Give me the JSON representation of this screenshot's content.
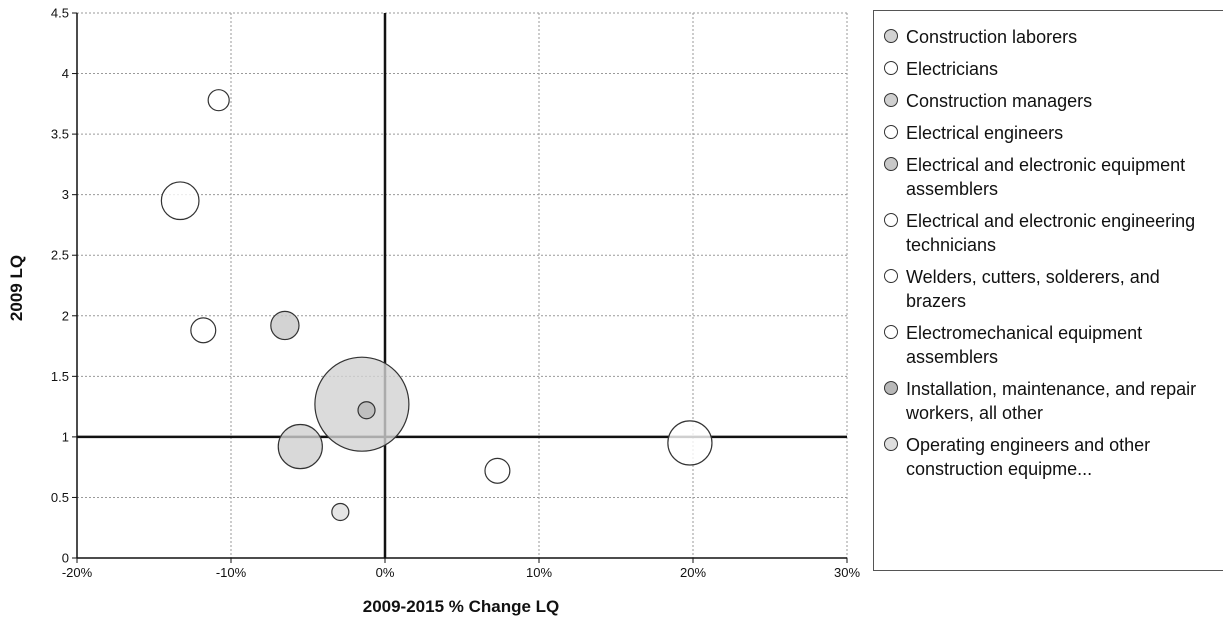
{
  "chart_data": {
    "type": "scatter",
    "xlabel": "2009-2015 % Change LQ",
    "ylabel": "2009 LQ",
    "xlim": [
      -20,
      30
    ],
    "ylim": [
      0,
      4.5
    ],
    "x_ticks": [
      -20,
      -10,
      0,
      10,
      20,
      30
    ],
    "x_tick_labels": [
      "-20%",
      "-10%",
      "0%",
      "10%",
      "20%",
      "30%"
    ],
    "y_ticks": [
      0,
      0.5,
      1,
      1.5,
      2,
      2.5,
      3,
      3.5,
      4,
      4.5
    ],
    "y_tick_labels": [
      "0",
      "0.5",
      "1",
      "1.5",
      "2",
      "2.5",
      "3",
      "3.5",
      "4",
      "4.5"
    ],
    "reference_lines": {
      "x": 0,
      "y": 1
    },
    "grid": true,
    "legend_position": "right",
    "bubble_size_meaning": "relative employment (bubble area)",
    "series": [
      {
        "name": "Construction laborers",
        "color": "#d2d2d2",
        "x": -1.5,
        "y": 1.27,
        "size": 100
      },
      {
        "name": "Electricians",
        "color": "#ffffff",
        "x": 19.8,
        "y": 0.95,
        "size": 22
      },
      {
        "name": "Construction managers",
        "color": "#d0d0d0",
        "x": -5.5,
        "y": 0.92,
        "size": 22
      },
      {
        "name": "Electrical engineers",
        "color": "#ffffff",
        "x": -13.3,
        "y": 2.95,
        "size": 16
      },
      {
        "name": "Electrical and electronic equipment assemblers",
        "color": "#c8c8c8",
        "x": -6.5,
        "y": 1.92,
        "size": 9
      },
      {
        "name": "Electrical and electronic engineering technicians",
        "color": "#ffffff",
        "x": 7.3,
        "y": 0.72,
        "size": 7
      },
      {
        "name": "Welders, cutters, solderers, and brazers",
        "color": "#ffffff",
        "x": -11.8,
        "y": 1.88,
        "size": 7
      },
      {
        "name": "Electromechanical equipment assemblers",
        "color": "#ffffff",
        "x": -10.8,
        "y": 3.78,
        "size": 5
      },
      {
        "name": "Installation, maintenance, and repair workers, all other",
        "color": "#b8b8b8",
        "x": -1.2,
        "y": 1.22,
        "size": 3
      },
      {
        "name": "Operating engineers and other construction equipme...",
        "color": "#dedede",
        "x": -2.9,
        "y": 0.38,
        "size": 3
      }
    ]
  }
}
